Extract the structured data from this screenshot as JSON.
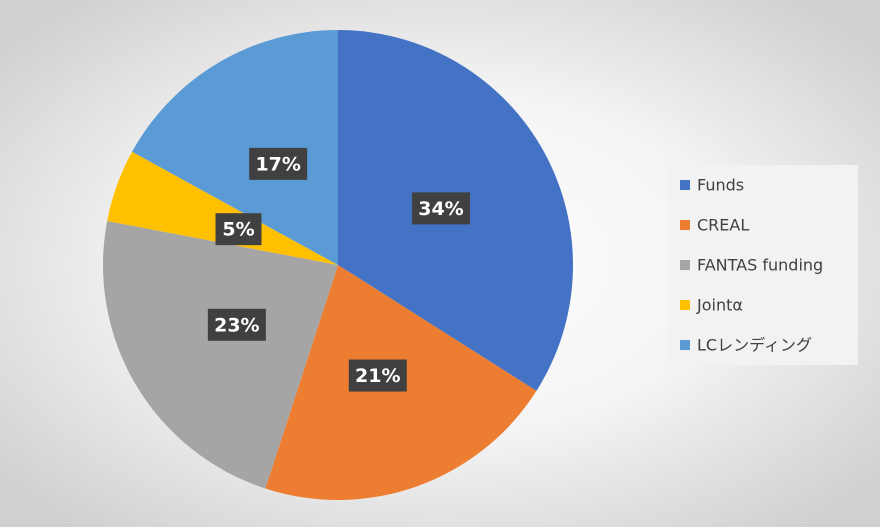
{
  "chart_data": {
    "type": "pie",
    "categories": [
      "Funds",
      "CREAL",
      "FANTAS funding",
      "Jointα",
      "LCレンディング"
    ],
    "values": [
      34,
      21,
      23,
      5,
      17
    ],
    "value_labels": [
      "34%",
      "21%",
      "23%",
      "5%",
      "17%"
    ],
    "colors": [
      "#4472c4",
      "#ed7d31",
      "#a5a5a5",
      "#ffc000",
      "#5b9bd5"
    ],
    "legend": "right"
  }
}
